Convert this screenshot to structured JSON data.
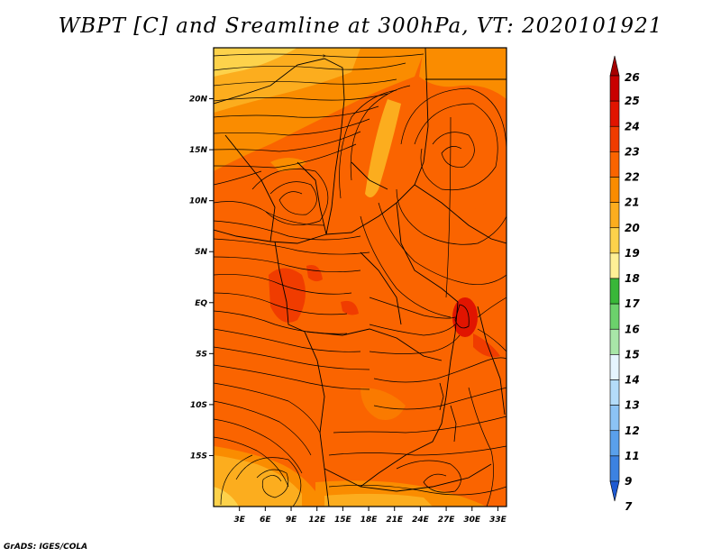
{
  "title": "WBPT [C] and Sreamline at 300hPa, VT: 2020101921",
  "credit": "GrADS: IGES/COLA",
  "chart_data": {
    "type": "heatmap",
    "title": "WBPT [C] and Sreamline at 300hPa, VT: 2020101921",
    "variable": "WBPT [C]",
    "overlay": "streamlines",
    "level": "300hPa",
    "valid_time": "2020101921",
    "x_ticks": [
      3,
      6,
      9,
      12,
      15,
      18,
      21,
      24,
      27,
      30,
      33
    ],
    "x_tick_labels": [
      "3E",
      "6E",
      "9E",
      "12E",
      "15E",
      "18E",
      "21E",
      "24E",
      "27E",
      "30E",
      "33E"
    ],
    "y_ticks": [
      20,
      15,
      10,
      5,
      0,
      -5,
      -10,
      -15
    ],
    "y_tick_labels": [
      "20N",
      "15N",
      "10N",
      "5N",
      "EQ",
      "5S",
      "10S",
      "15S"
    ],
    "xlim": [
      0,
      34
    ],
    "ylim": [
      -20,
      25
    ],
    "colorbar": {
      "levels": [
        "26",
        "25",
        "24",
        "23",
        "22",
        "21",
        "20",
        "19",
        "18",
        "17",
        "16",
        "15",
        "14",
        "13",
        "12",
        "11",
        "9",
        "7"
      ],
      "colors": [
        "#a50000",
        "#c80000",
        "#e11400",
        "#f03c00",
        "#fa6400",
        "#fa8c00",
        "#fcad1e",
        "#fdd24b",
        "#fff096",
        "#39b739",
        "#6cd16c",
        "#a8e6a8",
        "#e6f5ff",
        "#b4dcfa",
        "#8cc3f5",
        "#5aa0eb",
        "#3c82e1",
        "#1e5ad2"
      ]
    },
    "field": [
      {
        "lon": 3,
        "lat": 24,
        "value": 20
      },
      {
        "lon": 12,
        "lat": 22,
        "value": 21
      },
      {
        "lon": 22,
        "lat": 18,
        "value": 21
      },
      {
        "lon": 29,
        "lat": 16,
        "value": 22
      },
      {
        "lon": 12,
        "lat": 10,
        "value": 22
      },
      {
        "lon": 9,
        "lat": -1,
        "value": 24
      },
      {
        "lon": 29,
        "lat": -1,
        "value": 24
      },
      {
        "lon": 18,
        "lat": -5,
        "value": 23
      },
      {
        "lon": 6,
        "lat": -17,
        "value": 20
      },
      {
        "lon": 25,
        "lat": -16,
        "value": 22
      }
    ]
  }
}
